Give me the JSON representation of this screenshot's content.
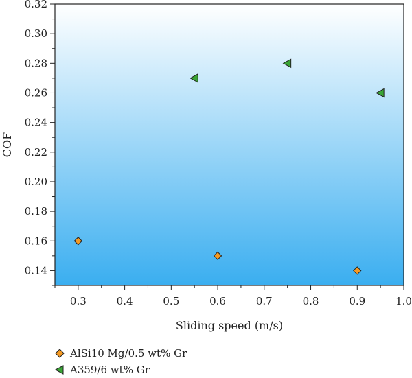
{
  "chart_data": {
    "type": "scatter",
    "xlabel": "Sliding speed (m/s)",
    "ylabel": "COF",
    "xlim": [
      0.25,
      1.0
    ],
    "ylim": [
      0.13,
      0.32
    ],
    "xticks": [
      "0.3",
      "0.4",
      "0.5",
      "0.6",
      "0.7",
      "0.8",
      "0.9",
      "1.0"
    ],
    "yticks": [
      "0.14",
      "0.16",
      "0.18",
      "0.20",
      "0.22",
      "0.24",
      "0.26",
      "0.28",
      "0.30",
      "0.32"
    ],
    "grid": false,
    "legend_position": "bottom-left",
    "series": [
      {
        "name": "AlSi10 Mg/0.5 wt% Gr",
        "marker": "diamond",
        "color": "#f59a23",
        "points": [
          {
            "x": 0.3,
            "y": 0.16
          },
          {
            "x": 0.6,
            "y": 0.15
          },
          {
            "x": 0.9,
            "y": 0.14
          }
        ]
      },
      {
        "name": "A359/6 wt% Gr",
        "marker": "triangle-left",
        "color": "#3aa535",
        "points": [
          {
            "x": 0.55,
            "y": 0.27
          },
          {
            "x": 0.75,
            "y": 0.28
          },
          {
            "x": 0.95,
            "y": 0.26
          }
        ]
      }
    ],
    "background_gradient": [
      "#ffffff",
      "#3aaef0"
    ]
  }
}
